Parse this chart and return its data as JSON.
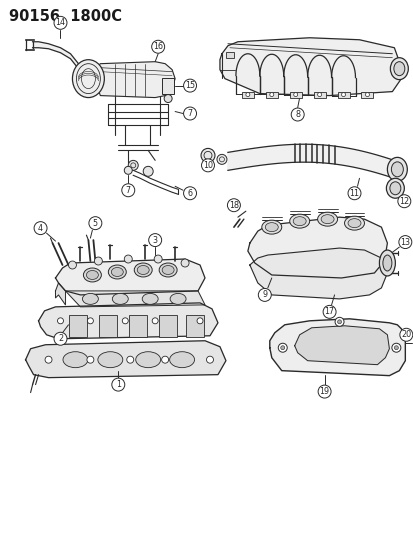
{
  "title": "90156  1800C",
  "bg_color": "#ffffff",
  "fig_width": 4.14,
  "fig_height": 5.33,
  "dpi": 100,
  "line_color": "#2a2a2a",
  "text_color": "#1a1a1a",
  "label_fontsize": 5.8,
  "title_fontsize": 10.5
}
